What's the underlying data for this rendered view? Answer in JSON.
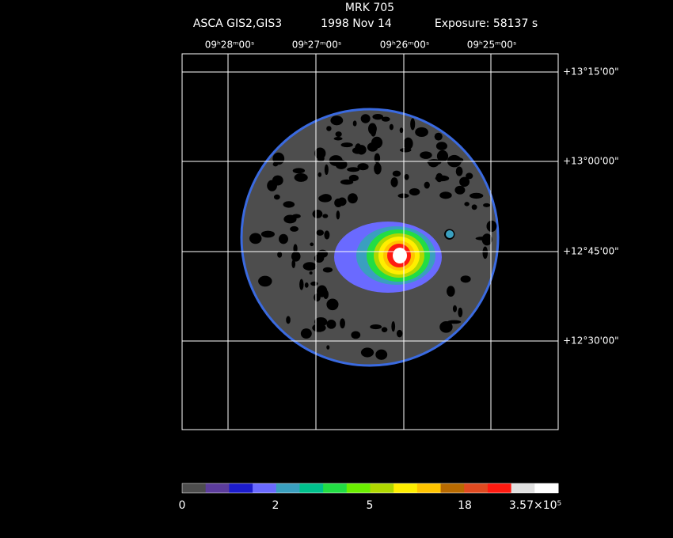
{
  "header": {
    "title": "MRK 705",
    "instrument": "ASCA GIS2,GIS3",
    "date": "1998 Nov 14",
    "exposure": "Exposure: 58137 s"
  },
  "ra_ticks": [
    "09ʰ28ᵐ00ˢ",
    "09ʰ27ᵐ00ˢ",
    "09ʰ26ᵐ00ˢ",
    "09ʰ25ᵐ00ˢ"
  ],
  "dec_ticks": [
    "+13°15'00\"",
    "+13°00'00\"",
    "+12°45'00\"",
    "+12°30'00\""
  ],
  "colorbar": {
    "colors": [
      "#4d4d4d",
      "#5c3c9c",
      "#1c1ccc",
      "#6a6aff",
      "#3a9fbf",
      "#00c08c",
      "#22dd44",
      "#6aee00",
      "#b0d800",
      "#ffee00",
      "#ffc400",
      "#b86a00",
      "#e04a20",
      "#ff1a10",
      "#e0e0e0",
      "#ffffff"
    ],
    "labels": [
      "0",
      "2",
      "5",
      "18",
      "3.57×10⁵"
    ]
  }
}
